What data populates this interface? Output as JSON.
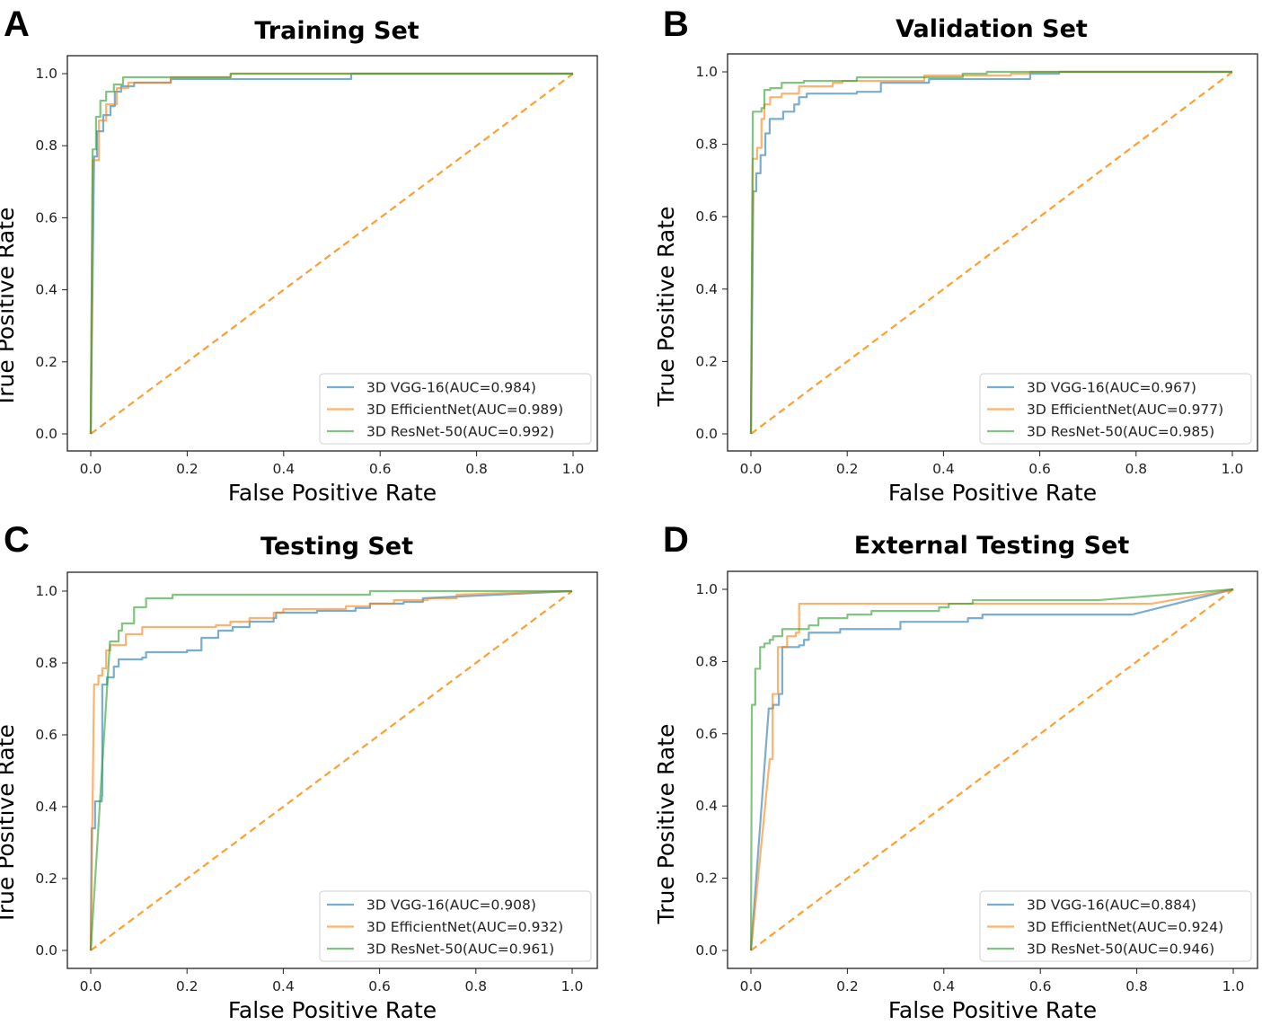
{
  "colors": {
    "vgg": "#1f77b4",
    "eff": "#ff7f0e",
    "res": "#2ca02c",
    "diag": "#ff9f33"
  },
  "chart_data": [
    {
      "type": "line",
      "letter": "A",
      "title": "Training Set",
      "xlabel": "False Positive Rate",
      "ylabel": "True Positive Rate",
      "xlim": [
        0,
        1
      ],
      "ylim": [
        0,
        1
      ],
      "xticks": [
        "0.0",
        "0.2",
        "0.4",
        "0.6",
        "0.8",
        "1.0"
      ],
      "yticks": [
        "0.0",
        "0.2",
        "0.4",
        "0.6",
        "0.8",
        "1.0"
      ],
      "legend_position": "lower-right",
      "series": [
        {
          "key": "vgg",
          "name": "3D VGG-16(AUC=0.984)",
          "points": [
            [
              0,
              0
            ],
            [
              0.007,
              0.77
            ],
            [
              0.013,
              0.84
            ],
            [
              0.026,
              0.885
            ],
            [
              0.041,
              0.91
            ],
            [
              0.05,
              0.95
            ],
            [
              0.063,
              0.965
            ],
            [
              0.09,
              0.975
            ],
            [
              0.166,
              0.985
            ],
            [
              0.54,
              0.99
            ],
            [
              0.54,
              1
            ],
            [
              1,
              1
            ]
          ]
        },
        {
          "key": "eff",
          "name": "3D EfficientNet(AUC=0.989)",
          "points": [
            [
              0,
              0
            ],
            [
              0.004,
              0.76
            ],
            [
              0.017,
              0.87
            ],
            [
              0.032,
              0.915
            ],
            [
              0.054,
              0.96
            ],
            [
              0.078,
              0.975
            ],
            [
              0.166,
              0.99
            ],
            [
              0.29,
              1
            ],
            [
              1,
              1
            ]
          ]
        },
        {
          "key": "res",
          "name": "3D ResNet-50(AUC=0.992)",
          "points": [
            [
              0,
              0
            ],
            [
              0.004,
              0.79
            ],
            [
              0.011,
              0.88
            ],
            [
              0.02,
              0.925
            ],
            [
              0.032,
              0.95
            ],
            [
              0.048,
              0.97
            ],
            [
              0.067,
              0.99
            ],
            [
              0.29,
              0.998
            ],
            [
              0.29,
              1
            ],
            [
              1,
              1
            ]
          ]
        }
      ]
    },
    {
      "type": "line",
      "letter": "B",
      "title": "Validation Set",
      "xlabel": "False Positive Rate",
      "ylabel": "True Positive Rate",
      "xlim": [
        0,
        1
      ],
      "ylim": [
        0,
        1
      ],
      "xticks": [
        "0.0",
        "0.2",
        "0.4",
        "0.6",
        "0.8",
        "1.0"
      ],
      "yticks": [
        "0.0",
        "0.2",
        "0.4",
        "0.6",
        "0.8",
        "1.0"
      ],
      "legend_position": "lower-right",
      "series": [
        {
          "key": "vgg",
          "name": "3D VGG-16(AUC=0.967)",
          "points": [
            [
              0,
              0
            ],
            [
              0.005,
              0.67
            ],
            [
              0.011,
              0.72
            ],
            [
              0.02,
              0.77
            ],
            [
              0.03,
              0.83
            ],
            [
              0.039,
              0.87
            ],
            [
              0.067,
              0.89
            ],
            [
              0.09,
              0.91
            ],
            [
              0.1,
              0.93
            ],
            [
              0.116,
              0.94
            ],
            [
              0.22,
              0.945
            ],
            [
              0.27,
              0.97
            ],
            [
              0.37,
              0.98
            ],
            [
              0.58,
              0.995
            ],
            [
              0.64,
              1
            ],
            [
              1,
              1
            ]
          ]
        },
        {
          "key": "eff",
          "name": "3D EfficientNet(AUC=0.977)",
          "points": [
            [
              0,
              0
            ],
            [
              0.004,
              0.76
            ],
            [
              0.013,
              0.79
            ],
            [
              0.022,
              0.87
            ],
            [
              0.028,
              0.91
            ],
            [
              0.04,
              0.93
            ],
            [
              0.064,
              0.94
            ],
            [
              0.1,
              0.96
            ],
            [
              0.17,
              0.97
            ],
            [
              0.19,
              0.975
            ],
            [
              0.36,
              0.99
            ],
            [
              0.54,
              0.995
            ],
            [
              0.58,
              1
            ],
            [
              1,
              1
            ]
          ]
        },
        {
          "key": "res",
          "name": "3D ResNet-50(AUC=0.985)",
          "points": [
            [
              0,
              0
            ],
            [
              0.004,
              0.89
            ],
            [
              0.022,
              0.9
            ],
            [
              0.028,
              0.95
            ],
            [
              0.04,
              0.955
            ],
            [
              0.064,
              0.97
            ],
            [
              0.11,
              0.975
            ],
            [
              0.22,
              0.985
            ],
            [
              0.44,
              0.995
            ],
            [
              0.49,
              1
            ],
            [
              1,
              1
            ]
          ]
        }
      ]
    },
    {
      "type": "line",
      "letter": "C",
      "title": "Testing Set",
      "xlabel": "False Positive Rate",
      "ylabel": "True Positive Rate",
      "xlim": [
        0,
        1
      ],
      "ylim": [
        0,
        1
      ],
      "xticks": [
        "0.0",
        "0.2",
        "0.4",
        "0.6",
        "0.8",
        "1.0"
      ],
      "yticks": [
        "0.0",
        "0.2",
        "0.4",
        "0.6",
        "0.8",
        "1.0"
      ],
      "legend_position": "lower-right",
      "series": [
        {
          "key": "vgg",
          "name": "3D VGG-16(AUC=0.908)",
          "points": [
            [
              0,
              0
            ],
            [
              0.002,
              0.34
            ],
            [
              0.009,
              0.415
            ],
            [
              0.023,
              0.43
            ],
            [
              0.024,
              0.74
            ],
            [
              0.034,
              0.76
            ],
            [
              0.048,
              0.79
            ],
            [
              0.058,
              0.81
            ],
            [
              0.107,
              0.815
            ],
            [
              0.115,
              0.83
            ],
            [
              0.2,
              0.835
            ],
            [
              0.23,
              0.87
            ],
            [
              0.265,
              0.89
            ],
            [
              0.295,
              0.9
            ],
            [
              0.33,
              0.915
            ],
            [
              0.38,
              0.925
            ],
            [
              0.385,
              0.94
            ],
            [
              0.47,
              0.945
            ],
            [
              0.55,
              0.953
            ],
            [
              0.58,
              0.965
            ],
            [
              0.65,
              0.97
            ],
            [
              0.69,
              0.98
            ],
            [
              1,
              1
            ]
          ]
        },
        {
          "key": "eff",
          "name": "3D EfficientNet(AUC=0.932)",
          "points": [
            [
              0,
              0
            ],
            [
              0.007,
              0.74
            ],
            [
              0.016,
              0.765
            ],
            [
              0.024,
              0.785
            ],
            [
              0.032,
              0.835
            ],
            [
              0.041,
              0.85
            ],
            [
              0.073,
              0.88
            ],
            [
              0.107,
              0.9
            ],
            [
              0.26,
              0.905
            ],
            [
              0.29,
              0.915
            ],
            [
              0.33,
              0.925
            ],
            [
              0.38,
              0.94
            ],
            [
              0.4,
              0.95
            ],
            [
              0.53,
              0.958
            ],
            [
              0.58,
              0.965
            ],
            [
              0.63,
              0.975
            ],
            [
              0.7,
              0.98
            ],
            [
              0.76,
              0.99
            ],
            [
              1,
              1
            ]
          ]
        },
        {
          "key": "res",
          "name": "3D ResNet-50(AUC=0.961)",
          "points": [
            [
              0,
              0
            ],
            [
              0.04,
              0.86
            ],
            [
              0.058,
              0.89
            ],
            [
              0.065,
              0.91
            ],
            [
              0.09,
              0.955
            ],
            [
              0.115,
              0.98
            ],
            [
              0.17,
              0.99
            ],
            [
              0.58,
              1
            ],
            [
              1,
              1
            ]
          ]
        }
      ]
    },
    {
      "type": "line",
      "letter": "D",
      "title": "External Testing Set",
      "xlabel": "False Positive Rate",
      "ylabel": "True Positive Rate",
      "xlim": [
        0,
        1
      ],
      "ylim": [
        0,
        1
      ],
      "xticks": [
        "0.0",
        "0.2",
        "0.4",
        "0.6",
        "0.8",
        "1.0"
      ],
      "yticks": [
        "0.0",
        "0.2",
        "0.4",
        "0.6",
        "0.8",
        "1.0"
      ],
      "legend_position": "lower-right",
      "series": [
        {
          "key": "vgg",
          "name": "3D VGG-16(AUC=0.884)",
          "points": [
            [
              0,
              0
            ],
            [
              0.037,
              0.67
            ],
            [
              0.046,
              0.68
            ],
            [
              0.058,
              0.71
            ],
            [
              0.065,
              0.84
            ],
            [
              0.1,
              0.845
            ],
            [
              0.11,
              0.86
            ],
            [
              0.12,
              0.88
            ],
            [
              0.185,
              0.89
            ],
            [
              0.31,
              0.91
            ],
            [
              0.45,
              0.92
            ],
            [
              0.48,
              0.93
            ],
            [
              0.79,
              0.93
            ],
            [
              1,
              1
            ]
          ]
        },
        {
          "key": "eff",
          "name": "3D EfficientNet(AUC=0.924)",
          "points": [
            [
              0,
              0
            ],
            [
              0.039,
              0.53
            ],
            [
              0.045,
              0.71
            ],
            [
              0.056,
              0.84
            ],
            [
              0.075,
              0.87
            ],
            [
              0.093,
              0.88
            ],
            [
              0.1,
              0.96
            ],
            [
              0.83,
              0.96
            ],
            [
              1,
              1
            ]
          ]
        },
        {
          "key": "res",
          "name": "3D ResNet-50(AUC=0.946)",
          "points": [
            [
              0,
              0
            ],
            [
              0.002,
              0.68
            ],
            [
              0.009,
              0.78
            ],
            [
              0.019,
              0.84
            ],
            [
              0.028,
              0.85
            ],
            [
              0.039,
              0.86
            ],
            [
              0.046,
              0.87
            ],
            [
              0.065,
              0.89
            ],
            [
              0.12,
              0.9
            ],
            [
              0.14,
              0.92
            ],
            [
              0.2,
              0.93
            ],
            [
              0.25,
              0.94
            ],
            [
              0.39,
              0.95
            ],
            [
              0.41,
              0.96
            ],
            [
              0.46,
              0.97
            ],
            [
              0.72,
              0.97
            ],
            [
              1,
              1
            ]
          ]
        }
      ]
    }
  ]
}
